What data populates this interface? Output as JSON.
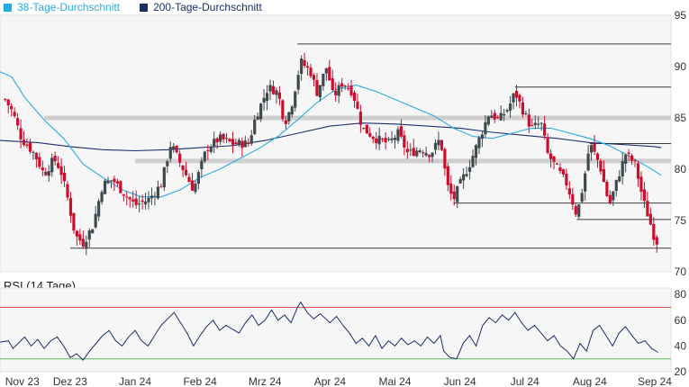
{
  "legend": {
    "ma38_label": "38-Tage-Durchschnitt",
    "ma200_label": "200-Tage-Durchschnitt"
  },
  "rsi_title": "RSI (14 Tage)",
  "colors": {
    "ma38": "#29abe2",
    "ma200": "#1c2f6b",
    "candle_up": "#3f4a4f",
    "candle_down": "#c8102e",
    "support": "#3a3a3a",
    "zone": "#cfcfcf",
    "rsi_line": "#1c2f6b",
    "rsi_overbought": "#d9534f",
    "rsi_oversold": "#5cb85c",
    "panel_bg": "#f6f6f6"
  },
  "chart_data": [
    {
      "type": "candlestick",
      "title": "",
      "x_tick_labels": [
        "Nov 23",
        "Dez 23",
        "Jan 24",
        "Feb 24",
        "Mrz 24",
        "Apr 24",
        "Mai 24",
        "Jun 24",
        "Jul 24",
        "Aug 24",
        "Sep 24"
      ],
      "x_tick_months": [
        0,
        1,
        2,
        3,
        4,
        5,
        6,
        7,
        8,
        9,
        10
      ],
      "x_range_months": [
        -0.08,
        10.25
      ],
      "y_ticks": [
        70,
        75,
        80,
        85,
        90,
        95
      ],
      "ylim": [
        70,
        95
      ],
      "ohlc_anchors": [
        {
          "m": 0.0,
          "c": 86.8
        },
        {
          "m": 0.12,
          "c": 85.5
        },
        {
          "m": 0.25,
          "c": 83.0
        },
        {
          "m": 0.45,
          "c": 81.5
        },
        {
          "m": 0.6,
          "c": 79.5
        },
        {
          "m": 0.75,
          "c": 81.0
        },
        {
          "m": 0.85,
          "c": 80.0
        },
        {
          "m": 0.95,
          "c": 77.5
        },
        {
          "m": 1.08,
          "c": 73.5
        },
        {
          "m": 1.2,
          "c": 72.8
        },
        {
          "m": 1.35,
          "c": 74.5
        },
        {
          "m": 1.5,
          "c": 78.5
        },
        {
          "m": 1.65,
          "c": 79.0
        },
        {
          "m": 1.85,
          "c": 77.5
        },
        {
          "m": 2.0,
          "c": 76.5
        },
        {
          "m": 2.2,
          "c": 77.0
        },
        {
          "m": 2.4,
          "c": 78.5
        },
        {
          "m": 2.55,
          "c": 82.5
        },
        {
          "m": 2.7,
          "c": 80.5
        },
        {
          "m": 2.9,
          "c": 78.0
        },
        {
          "m": 3.1,
          "c": 82.0
        },
        {
          "m": 3.3,
          "c": 83.0
        },
        {
          "m": 3.5,
          "c": 82.5
        },
        {
          "m": 3.75,
          "c": 82.5
        },
        {
          "m": 3.85,
          "c": 85.0
        },
        {
          "m": 4.05,
          "c": 88.0
        },
        {
          "m": 4.2,
          "c": 87.5
        },
        {
          "m": 4.3,
          "c": 84.5
        },
        {
          "m": 4.4,
          "c": 86.0
        },
        {
          "m": 4.55,
          "c": 90.5
        },
        {
          "m": 4.7,
          "c": 89.5
        },
        {
          "m": 4.8,
          "c": 87.5
        },
        {
          "m": 4.95,
          "c": 90.0
        },
        {
          "m": 5.05,
          "c": 87.0
        },
        {
          "m": 5.2,
          "c": 88.5
        },
        {
          "m": 5.35,
          "c": 87.5
        },
        {
          "m": 5.5,
          "c": 84.0
        },
        {
          "m": 5.7,
          "c": 83.0
        },
        {
          "m": 5.9,
          "c": 82.5
        },
        {
          "m": 6.05,
          "c": 83.5
        },
        {
          "m": 6.2,
          "c": 81.5
        },
        {
          "m": 6.4,
          "c": 82.0
        },
        {
          "m": 6.55,
          "c": 81.5
        },
        {
          "m": 6.7,
          "c": 83.0
        },
        {
          "m": 6.8,
          "c": 78.5
        },
        {
          "m": 6.9,
          "c": 77.0
        },
        {
          "m": 7.0,
          "c": 78.5
        },
        {
          "m": 7.15,
          "c": 80.5
        },
        {
          "m": 7.3,
          "c": 83.0
        },
        {
          "m": 7.45,
          "c": 85.5
        },
        {
          "m": 7.6,
          "c": 84.8
        },
        {
          "m": 7.75,
          "c": 86.0
        },
        {
          "m": 7.85,
          "c": 87.5
        },
        {
          "m": 7.95,
          "c": 86.0
        },
        {
          "m": 8.1,
          "c": 84.0
        },
        {
          "m": 8.25,
          "c": 84.5
        },
        {
          "m": 8.35,
          "c": 81.5
        },
        {
          "m": 8.5,
          "c": 80.0
        },
        {
          "m": 8.65,
          "c": 78.5
        },
        {
          "m": 8.8,
          "c": 75.5
        },
        {
          "m": 8.9,
          "c": 78.5
        },
        {
          "m": 9.0,
          "c": 82.5
        },
        {
          "m": 9.15,
          "c": 80.5
        },
        {
          "m": 9.3,
          "c": 76.5
        },
        {
          "m": 9.45,
          "c": 79.5
        },
        {
          "m": 9.55,
          "c": 81.5
        },
        {
          "m": 9.7,
          "c": 80.5
        },
        {
          "m": 9.82,
          "c": 77.0
        },
        {
          "m": 9.92,
          "c": 75.0
        },
        {
          "m": 10.0,
          "c": 73.2
        },
        {
          "m": 10.05,
          "c": 72.8
        }
      ],
      "ma38": [
        {
          "m": -0.08,
          "v": 89.5
        },
        {
          "m": 0.1,
          "v": 89.0
        },
        {
          "m": 0.3,
          "v": 87.0
        },
        {
          "m": 0.6,
          "v": 84.8
        },
        {
          "m": 0.9,
          "v": 83.0
        },
        {
          "m": 1.2,
          "v": 80.5
        },
        {
          "m": 1.5,
          "v": 79.2
        },
        {
          "m": 1.8,
          "v": 78.0
        },
        {
          "m": 2.1,
          "v": 77.3
        },
        {
          "m": 2.4,
          "v": 77.3
        },
        {
          "m": 2.7,
          "v": 78.0
        },
        {
          "m": 3.0,
          "v": 79.2
        },
        {
          "m": 3.3,
          "v": 80.0
        },
        {
          "m": 3.6,
          "v": 81.0
        },
        {
          "m": 3.9,
          "v": 82.0
        },
        {
          "m": 4.2,
          "v": 83.2
        },
        {
          "m": 4.5,
          "v": 84.8
        },
        {
          "m": 4.8,
          "v": 86.5
        },
        {
          "m": 5.1,
          "v": 87.8
        },
        {
          "m": 5.4,
          "v": 88.2
        },
        {
          "m": 5.7,
          "v": 87.6
        },
        {
          "m": 6.0,
          "v": 86.8
        },
        {
          "m": 6.3,
          "v": 86.0
        },
        {
          "m": 6.6,
          "v": 85.2
        },
        {
          "m": 6.9,
          "v": 84.0
        },
        {
          "m": 7.2,
          "v": 83.2
        },
        {
          "m": 7.5,
          "v": 83.0
        },
        {
          "m": 7.8,
          "v": 83.5
        },
        {
          "m": 8.1,
          "v": 84.0
        },
        {
          "m": 8.4,
          "v": 84.0
        },
        {
          "m": 8.7,
          "v": 83.5
        },
        {
          "m": 9.0,
          "v": 83.0
        },
        {
          "m": 9.3,
          "v": 82.3
        },
        {
          "m": 9.6,
          "v": 81.3
        },
        {
          "m": 9.9,
          "v": 80.2
        },
        {
          "m": 10.1,
          "v": 79.4
        }
      ],
      "ma200": [
        {
          "m": -0.08,
          "v": 82.8
        },
        {
          "m": 0.5,
          "v": 82.6
        },
        {
          "m": 1.0,
          "v": 82.2
        },
        {
          "m": 1.5,
          "v": 81.9
        },
        {
          "m": 2.0,
          "v": 81.8
        },
        {
          "m": 2.5,
          "v": 81.9
        },
        {
          "m": 3.0,
          "v": 82.1
        },
        {
          "m": 3.5,
          "v": 82.3
        },
        {
          "m": 4.0,
          "v": 82.8
        },
        {
          "m": 4.5,
          "v": 83.5
        },
        {
          "m": 5.0,
          "v": 84.2
        },
        {
          "m": 5.5,
          "v": 84.5
        },
        {
          "m": 6.0,
          "v": 84.4
        },
        {
          "m": 6.5,
          "v": 84.2
        },
        {
          "m": 7.0,
          "v": 84.0
        },
        {
          "m": 7.5,
          "v": 83.6
        },
        {
          "m": 8.0,
          "v": 83.3
        },
        {
          "m": 8.5,
          "v": 83.0
        },
        {
          "m": 9.0,
          "v": 82.6
        },
        {
          "m": 9.5,
          "v": 82.4
        },
        {
          "m": 10.0,
          "v": 82.2
        },
        {
          "m": 10.1,
          "v": 82.1
        }
      ],
      "support_resistance_lines": [
        {
          "from_m": 4.5,
          "to_m": 10.25,
          "v": 92.2
        },
        {
          "from_m": 7.85,
          "to_m": 10.25,
          "v": 88.0
        },
        {
          "from_m": 9.0,
          "to_m": 10.25,
          "v": 82.5
        },
        {
          "from_m": 6.9,
          "to_m": 10.25,
          "v": 76.7
        },
        {
          "from_m": 8.8,
          "to_m": 10.25,
          "v": 75.1
        },
        {
          "from_m": 1.0,
          "to_m": 10.25,
          "v": 72.3
        }
      ],
      "zones": [
        {
          "from_m": 0.6,
          "to_m": 10.25,
          "v": 85.0
        },
        {
          "from_m": 2.0,
          "to_m": 10.25,
          "v": 80.8
        }
      ]
    },
    {
      "type": "line",
      "title": "RSI (14 Tage)",
      "y_ticks": [
        20,
        40,
        60,
        80
      ],
      "ylim": [
        20,
        85
      ],
      "overbought": 70,
      "oversold": 30,
      "rsi": [
        {
          "m": -0.08,
          "v": 43
        },
        {
          "m": 0.05,
          "v": 44
        },
        {
          "m": 0.12,
          "v": 38
        },
        {
          "m": 0.2,
          "v": 42
        },
        {
          "m": 0.3,
          "v": 47
        },
        {
          "m": 0.4,
          "v": 40
        },
        {
          "m": 0.5,
          "v": 45
        },
        {
          "m": 0.6,
          "v": 38
        },
        {
          "m": 0.7,
          "v": 44
        },
        {
          "m": 0.8,
          "v": 47
        },
        {
          "m": 0.9,
          "v": 40
        },
        {
          "m": 1.0,
          "v": 31
        },
        {
          "m": 1.1,
          "v": 34
        },
        {
          "m": 1.2,
          "v": 29
        },
        {
          "m": 1.3,
          "v": 36
        },
        {
          "m": 1.4,
          "v": 42
        },
        {
          "m": 1.5,
          "v": 48
        },
        {
          "m": 1.6,
          "v": 52
        },
        {
          "m": 1.7,
          "v": 44
        },
        {
          "m": 1.8,
          "v": 40
        },
        {
          "m": 1.9,
          "v": 47
        },
        {
          "m": 2.0,
          "v": 52
        },
        {
          "m": 2.1,
          "v": 44
        },
        {
          "m": 2.2,
          "v": 40
        },
        {
          "m": 2.3,
          "v": 48
        },
        {
          "m": 2.4,
          "v": 56
        },
        {
          "m": 2.5,
          "v": 61
        },
        {
          "m": 2.6,
          "v": 66
        },
        {
          "m": 2.7,
          "v": 58
        },
        {
          "m": 2.8,
          "v": 50
        },
        {
          "m": 2.9,
          "v": 40
        },
        {
          "m": 3.0,
          "v": 48
        },
        {
          "m": 3.1,
          "v": 55
        },
        {
          "m": 3.2,
          "v": 60
        },
        {
          "m": 3.3,
          "v": 52
        },
        {
          "m": 3.4,
          "v": 56
        },
        {
          "m": 3.5,
          "v": 53
        },
        {
          "m": 3.6,
          "v": 50
        },
        {
          "m": 3.7,
          "v": 58
        },
        {
          "m": 3.8,
          "v": 64
        },
        {
          "m": 3.9,
          "v": 56
        },
        {
          "m": 4.0,
          "v": 60
        },
        {
          "m": 4.1,
          "v": 68
        },
        {
          "m": 4.2,
          "v": 60
        },
        {
          "m": 4.3,
          "v": 64
        },
        {
          "m": 4.4,
          "v": 58
        },
        {
          "m": 4.5,
          "v": 70
        },
        {
          "m": 4.55,
          "v": 74
        },
        {
          "m": 4.65,
          "v": 66
        },
        {
          "m": 4.75,
          "v": 61
        },
        {
          "m": 4.85,
          "v": 65
        },
        {
          "m": 5.0,
          "v": 58
        },
        {
          "m": 5.1,
          "v": 63
        },
        {
          "m": 5.2,
          "v": 56
        },
        {
          "m": 5.3,
          "v": 50
        },
        {
          "m": 5.4,
          "v": 42
        },
        {
          "m": 5.5,
          "v": 46
        },
        {
          "m": 5.6,
          "v": 40
        },
        {
          "m": 5.7,
          "v": 48
        },
        {
          "m": 5.8,
          "v": 38
        },
        {
          "m": 5.9,
          "v": 44
        },
        {
          "m": 6.0,
          "v": 40
        },
        {
          "m": 6.1,
          "v": 46
        },
        {
          "m": 6.2,
          "v": 41
        },
        {
          "m": 6.3,
          "v": 44
        },
        {
          "m": 6.4,
          "v": 40
        },
        {
          "m": 6.5,
          "v": 47
        },
        {
          "m": 6.6,
          "v": 42
        },
        {
          "m": 6.7,
          "v": 48
        },
        {
          "m": 6.75,
          "v": 36
        },
        {
          "m": 6.85,
          "v": 31
        },
        {
          "m": 6.95,
          "v": 30
        },
        {
          "m": 7.05,
          "v": 42
        },
        {
          "m": 7.15,
          "v": 48
        },
        {
          "m": 7.25,
          "v": 40
        },
        {
          "m": 7.35,
          "v": 56
        },
        {
          "m": 7.45,
          "v": 62
        },
        {
          "m": 7.55,
          "v": 58
        },
        {
          "m": 7.65,
          "v": 64
        },
        {
          "m": 7.75,
          "v": 60
        },
        {
          "m": 7.85,
          "v": 66
        },
        {
          "m": 7.95,
          "v": 58
        },
        {
          "m": 8.05,
          "v": 52
        },
        {
          "m": 8.15,
          "v": 56
        },
        {
          "m": 8.25,
          "v": 50
        },
        {
          "m": 8.35,
          "v": 44
        },
        {
          "m": 8.45,
          "v": 48
        },
        {
          "m": 8.55,
          "v": 40
        },
        {
          "m": 8.65,
          "v": 36
        },
        {
          "m": 8.75,
          "v": 30
        },
        {
          "m": 8.85,
          "v": 42
        },
        {
          "m": 8.95,
          "v": 36
        },
        {
          "m": 9.05,
          "v": 52
        },
        {
          "m": 9.15,
          "v": 56
        },
        {
          "m": 9.25,
          "v": 48
        },
        {
          "m": 9.35,
          "v": 40
        },
        {
          "m": 9.45,
          "v": 50
        },
        {
          "m": 9.55,
          "v": 55
        },
        {
          "m": 9.65,
          "v": 48
        },
        {
          "m": 9.75,
          "v": 42
        },
        {
          "m": 9.85,
          "v": 44
        },
        {
          "m": 9.95,
          "v": 38
        },
        {
          "m": 10.05,
          "v": 35
        }
      ]
    }
  ]
}
